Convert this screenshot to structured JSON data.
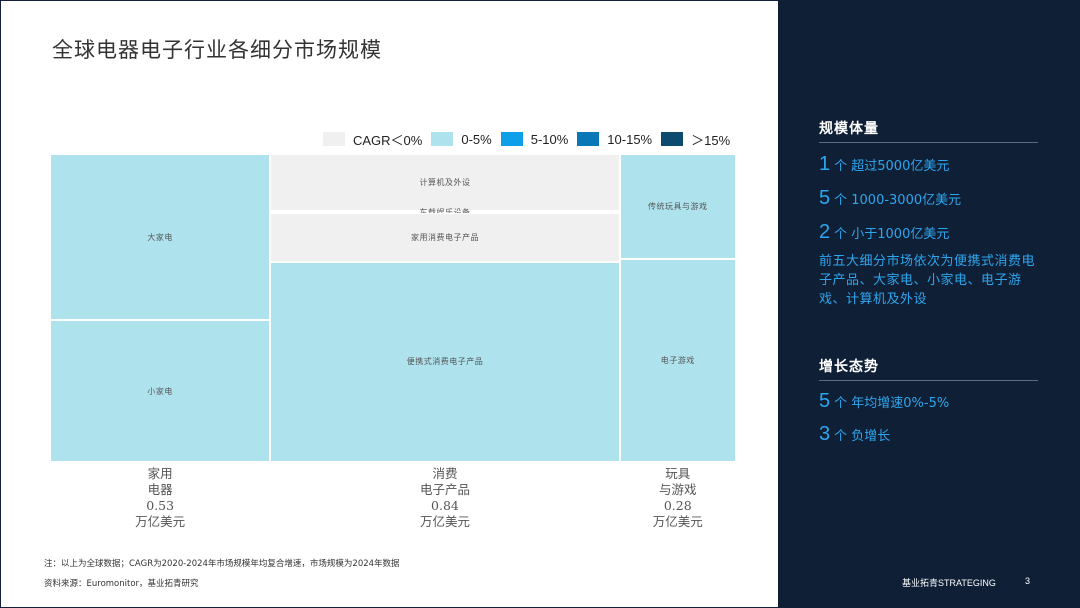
{
  "title": "全球电器电子行业各细分市场规模",
  "legend": [
    {
      "label": "CAGR＜0%",
      "color": "#f0f0f0"
    },
    {
      "label": "0-5%",
      "color": "#aee3ee"
    },
    {
      "label": "5-10%",
      "color": "#0da0e8"
    },
    {
      "label": "10-15%",
      "color": "#0a78b6"
    },
    {
      "label": "＞15%",
      "color": "#0c4a6e"
    }
  ],
  "chart_data": {
    "type": "mosaic",
    "unit": "万亿美元",
    "columns": [
      {
        "label_lines": [
          "家用",
          "电器",
          "0.53",
          "万亿美元"
        ],
        "market_size": 0.53,
        "segments": [
          {
            "name": "大家电",
            "share": 0.54,
            "cagr_band": "0-5%"
          },
          {
            "name": "小家电",
            "share": 0.46,
            "cagr_band": "0-5%"
          }
        ]
      },
      {
        "label_lines": [
          "消费",
          "电子产品",
          "0.84",
          "万亿美元"
        ],
        "market_size": 0.84,
        "segments": [
          {
            "name": "计算机及外设",
            "share": 0.185,
            "cagr_band": "CAGR＜0%"
          },
          {
            "name": "车载娱乐设备",
            "share": 0.005,
            "cagr_band": "CAGR＜0%"
          },
          {
            "name": "家用消费电子产品",
            "share": 0.16,
            "cagr_band": "CAGR＜0%"
          },
          {
            "name": "便携式消费电子产品",
            "share": 0.65,
            "cagr_band": "0-5%"
          }
        ]
      },
      {
        "label_lines": [
          "玩具",
          "与游戏",
          "0.28",
          "万亿美元"
        ],
        "market_size": 0.28,
        "segments": [
          {
            "name": "传统玩具与游戏",
            "share": 0.34,
            "cagr_band": "0-5%"
          },
          {
            "name": "电子游戏",
            "share": 0.66,
            "cagr_band": "0-5%"
          }
        ]
      }
    ]
  },
  "notes": [
    "注：以上为全球数据；CAGR为2020-2024年市场规模年均复合增速，市场规模为2024年数据",
    "资料来源：Euromonitor，基业拓青研究"
  ],
  "panel": {
    "scale": {
      "title": "规模体量",
      "items": [
        {
          "num": "1",
          "text": "个 超过5000亿美元"
        },
        {
          "num": "5",
          "text": "个 1000-3000亿美元"
        },
        {
          "num": "2",
          "text": "个 小于1000亿美元"
        }
      ],
      "summary": "前五大细分市场依次为便携式消费电子产品、大家电、小家电、电子游戏、计算机及外设"
    },
    "growth": {
      "title": "增长态势",
      "items": [
        {
          "num": "5",
          "text": "个 年均增速0%-5%"
        },
        {
          "num": "3",
          "text": "个 负增长"
        }
      ]
    },
    "footer_brand": "基业拓青STRATEGING",
    "page": "3"
  }
}
